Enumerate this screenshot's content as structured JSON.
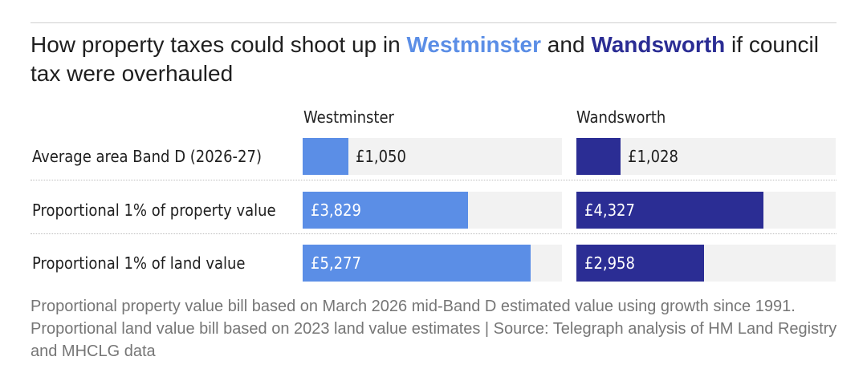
{
  "chart_data": {
    "type": "bar",
    "title_parts": {
      "before": "How property taxes could shoot up in ",
      "area1": "Westminster",
      "middle": " and ",
      "area2": "Wandsworth",
      "after": " if council tax were overhauled"
    },
    "categories": [
      "Average area Band D (2026-27)",
      "Proportional 1% of property value",
      "Proportional 1% of land value"
    ],
    "series": [
      {
        "name": "Westminster",
        "color": "#5b8ee6",
        "values": [
          1050,
          3829,
          5277
        ],
        "labels": [
          "£1,050",
          "£3,829",
          "£5,277"
        ]
      },
      {
        "name": "Wandsworth",
        "color": "#2b2d94",
        "values": [
          1028,
          4327,
          2958
        ],
        "labels": [
          "£1,028",
          "£4,327",
          "£2,958"
        ]
      }
    ],
    "xlim": [
      0,
      6000
    ],
    "footnote": "Proportional property value bill based on March 2026 mid-Band D estimated value using growth since 1991. Proportional land value bill based on 2023 land value estimates | Source: Telegraph analysis of HM Land Registry and MHCLG data"
  }
}
